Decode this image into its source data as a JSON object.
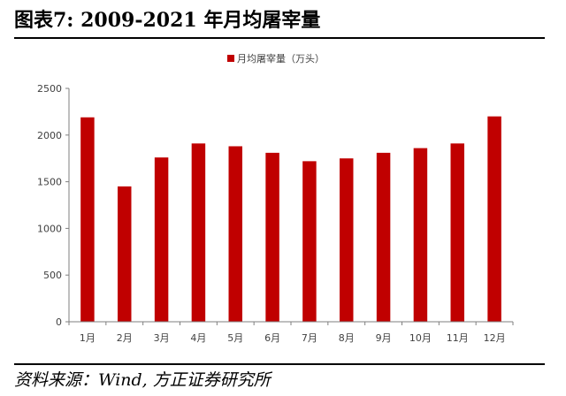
{
  "figure": {
    "title": "图表7:  2009-2021 年月均屠宰量",
    "source": "资料来源：Wind, 方正证券研究所"
  },
  "colors": {
    "bar": "#c00000",
    "axis": "#7f7f7f",
    "text": "#404040"
  },
  "chart_data": {
    "type": "bar",
    "title": "",
    "xlabel": "",
    "ylabel": "",
    "categories": [
      "1月",
      "2月",
      "3月",
      "4月",
      "5月",
      "6月",
      "7月",
      "8月",
      "9月",
      "10月",
      "11月",
      "12月"
    ],
    "series": [
      {
        "name": "月均屠宰量（万头）",
        "values": [
          2190,
          1450,
          1760,
          1910,
          1880,
          1810,
          1720,
          1750,
          1810,
          1860,
          1910,
          2200
        ]
      }
    ],
    "yticks": [
      "0",
      "500",
      "1000",
      "1500",
      "2000",
      "2500"
    ],
    "ylim": [
      0,
      2500
    ],
    "grid": false,
    "legend": "top-center"
  }
}
